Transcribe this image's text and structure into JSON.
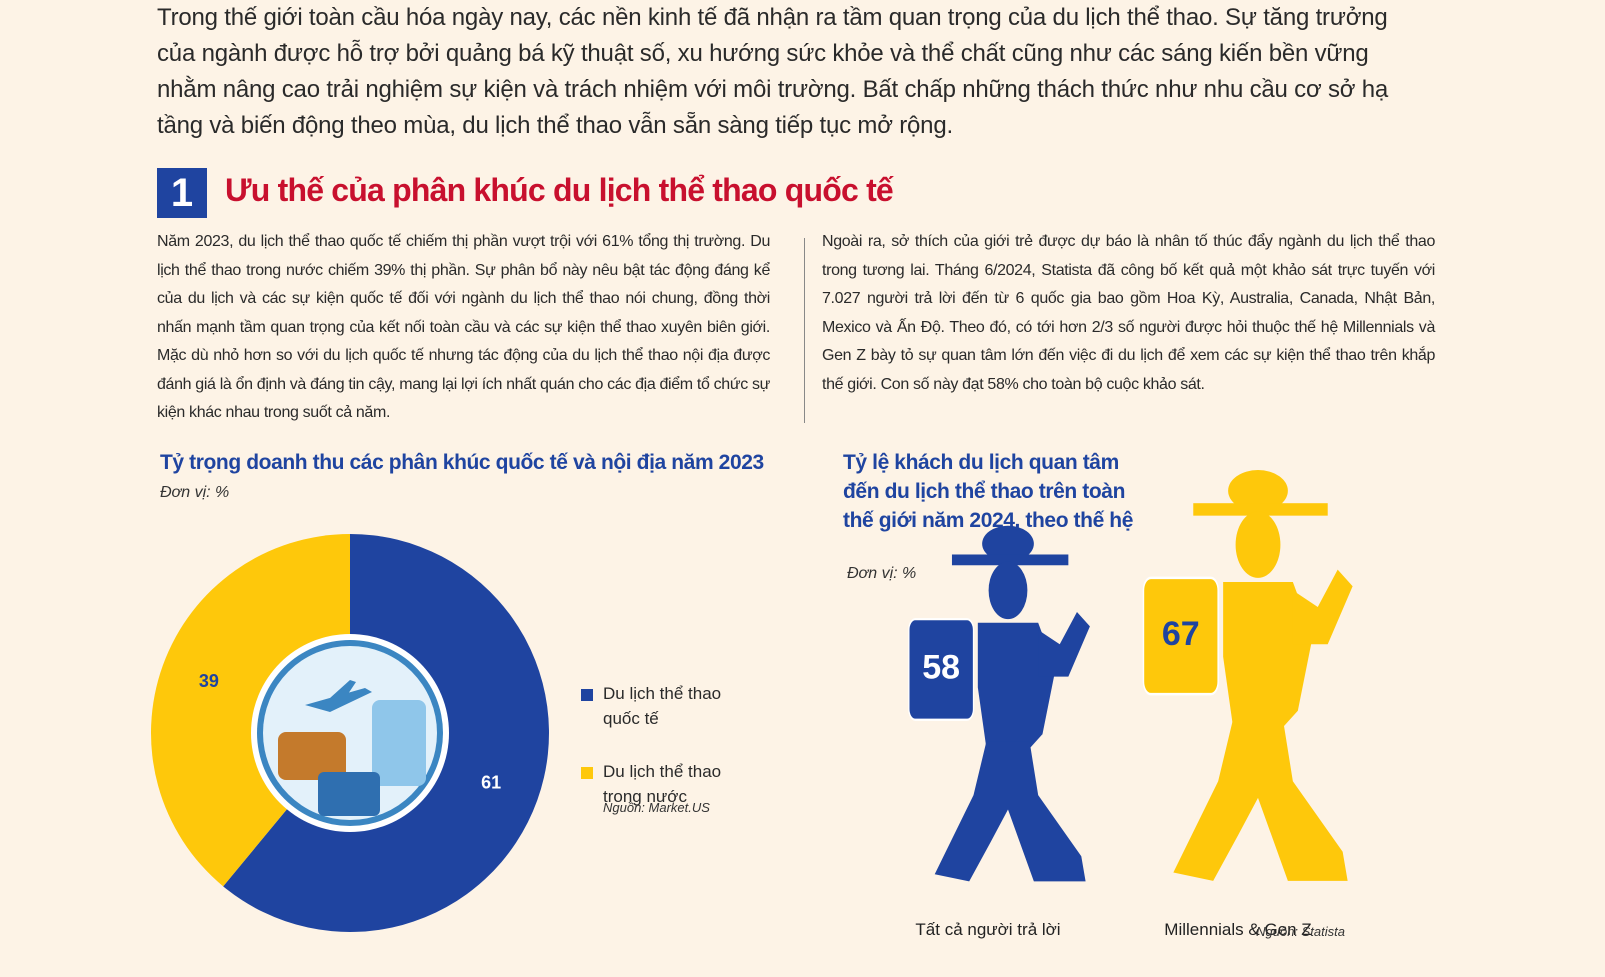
{
  "intro": "Trong thế giới toàn cầu hóa ngày nay, các nền kinh tế đã nhận ra tầm quan trọng của du lịch thể thao. Sự tăng trưởng của ngành được hỗ trợ bởi quảng bá kỹ thuật số, xu hướng sức khỏe và thể chất cũng như các sáng kiến bền vững nhằm nâng cao trải nghiệm sự kiện và trách nhiệm với môi trường. Bất chấp những thách thức như nhu cầu cơ sở hạ tầng và biến động theo mùa, du lịch thể thao vẫn sẵn sàng tiếp tục mở rộng.",
  "section": {
    "number": "1",
    "title": "Ưu thế của phân khúc du lịch thể thao quốc tế"
  },
  "columns": [
    "Năm 2023, du lịch thể thao quốc tế chiếm thị phần vượt trội với 61% tổng thị trường. Du lịch thể thao trong nước chiếm 39% thị phần. Sự phân bổ này nêu bật tác động đáng kể của du lịch và các sự kiện quốc tế đối với ngành du lịch thể thao nói chung, đồng thời nhấn mạnh tầm quan trọng của kết nối toàn cầu và các sự kiện thể thao xuyên biên giới. Mặc dù nhỏ hơn so với du lịch quốc tế nhưng tác động của du lịch thể thao nội địa được đánh giá là ổn định và đáng tin cậy, mang lại lợi ích nhất quán cho các địa điểm tổ chức sự kiện khác nhau trong suốt cả năm.",
    "Ngoài ra, sở thích của giới trẻ được dự báo là nhân tố thúc đẩy ngành du lịch thể thao trong tương lai. Tháng 6/2024, Statista đã công bố kết quả một khảo sát trực tuyến với 7.027 người trả lời đến từ 6 quốc gia bao gồm Hoa Kỳ, Australia, Canada, Nhật Bản, Mexico và Ấn Độ. Theo đó, có tới hơn 2/3 số người được hỏi thuộc thế hệ Millennials và Gen Z bày tỏ sự quan tâm lớn đến việc đi du lịch để xem các sự kiện thể thao trên khắp thế giới. Con số này đạt 58% cho toàn bộ cuộc khảo sát."
  ],
  "chart_data": [
    {
      "type": "pie",
      "title": "Tỷ trọng doanh thu các phân khúc quốc tế và nội địa năm 2023",
      "unit": "Đơn vị: %",
      "categories": [
        "Du lịch thể thao quốc tế",
        "Du lịch thể thao trong nước"
      ],
      "values": [
        61,
        39
      ],
      "colors": [
        "#1f44a0",
        "#fec80b"
      ],
      "source": "Nguồn: Market.US"
    },
    {
      "type": "pictograph",
      "title": "Tỷ lệ khách du lịch quan tâm đến du lịch thể thao trên toàn thế giới năm 2024, theo thế hệ",
      "unit": "Đơn vị: %",
      "categories": [
        "Tất cả người trả lời",
        "Millennials & Gen Z"
      ],
      "values": [
        58,
        67
      ],
      "colors": [
        "#1f44a0",
        "#fec80b"
      ],
      "source": "Nguồn: Statista"
    }
  ]
}
